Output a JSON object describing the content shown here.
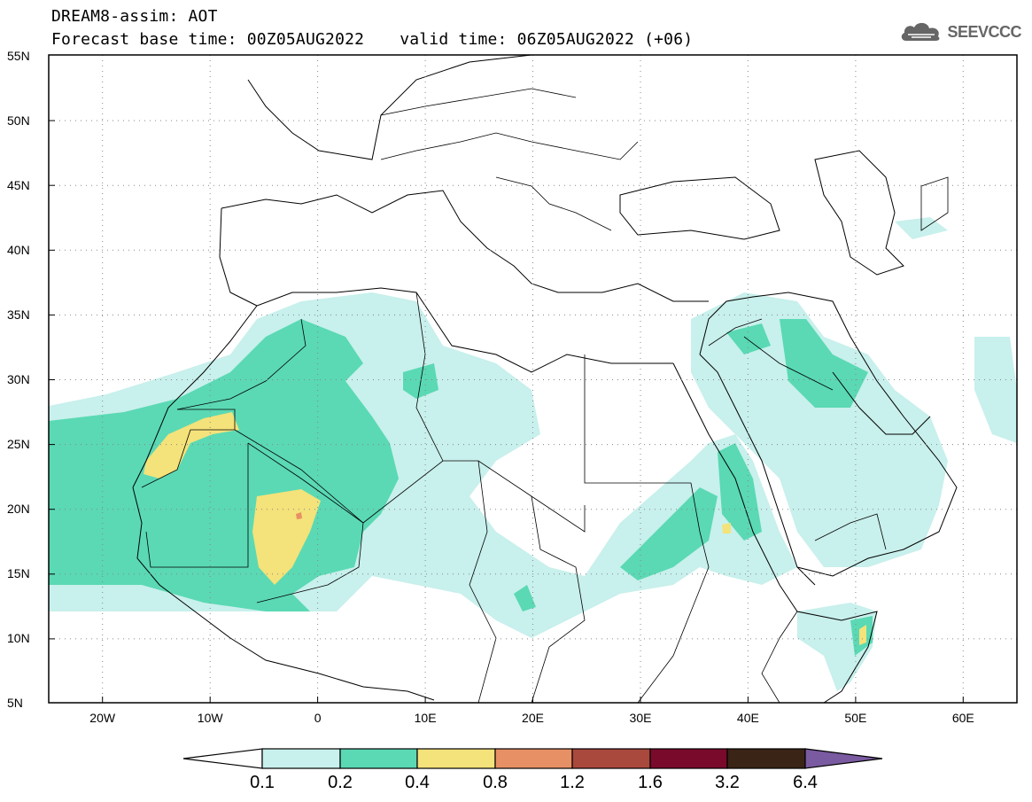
{
  "header": {
    "title": "DREAM8-assim: AOT",
    "base_time": "Forecast base time: 00Z05AUG2022",
    "valid_time": "valid time: 06Z05AUG2022 (+06)"
  },
  "logo": {
    "text": "SEEVCCC",
    "icon": "cloud-icon"
  },
  "map": {
    "lat_labels": [
      "55N",
      "50N",
      "45N",
      "40N",
      "35N",
      "30N",
      "25N",
      "20N",
      "15N",
      "10N",
      "5N"
    ],
    "lon_labels": [
      "20W",
      "10W",
      "0",
      "10E",
      "20E",
      "30E",
      "40E",
      "50E",
      "60E"
    ],
    "lat_range": [
      5,
      55
    ],
    "lon_range": [
      -25,
      65
    ],
    "grid": "dotted"
  },
  "colorbar": {
    "levels": [
      "0.1",
      "0.2",
      "0.4",
      "0.8",
      "1.2",
      "1.6",
      "3.2",
      "6.4"
    ],
    "colors": [
      "#c8f0ec",
      "#5ad9b4",
      "#f4e27a",
      "#e89065",
      "#a9483c",
      "#7a0a2c",
      "#3a2416",
      "#7a5aa0"
    ],
    "under_color": "#ffffff",
    "over_color": "#7a5aa0"
  }
}
